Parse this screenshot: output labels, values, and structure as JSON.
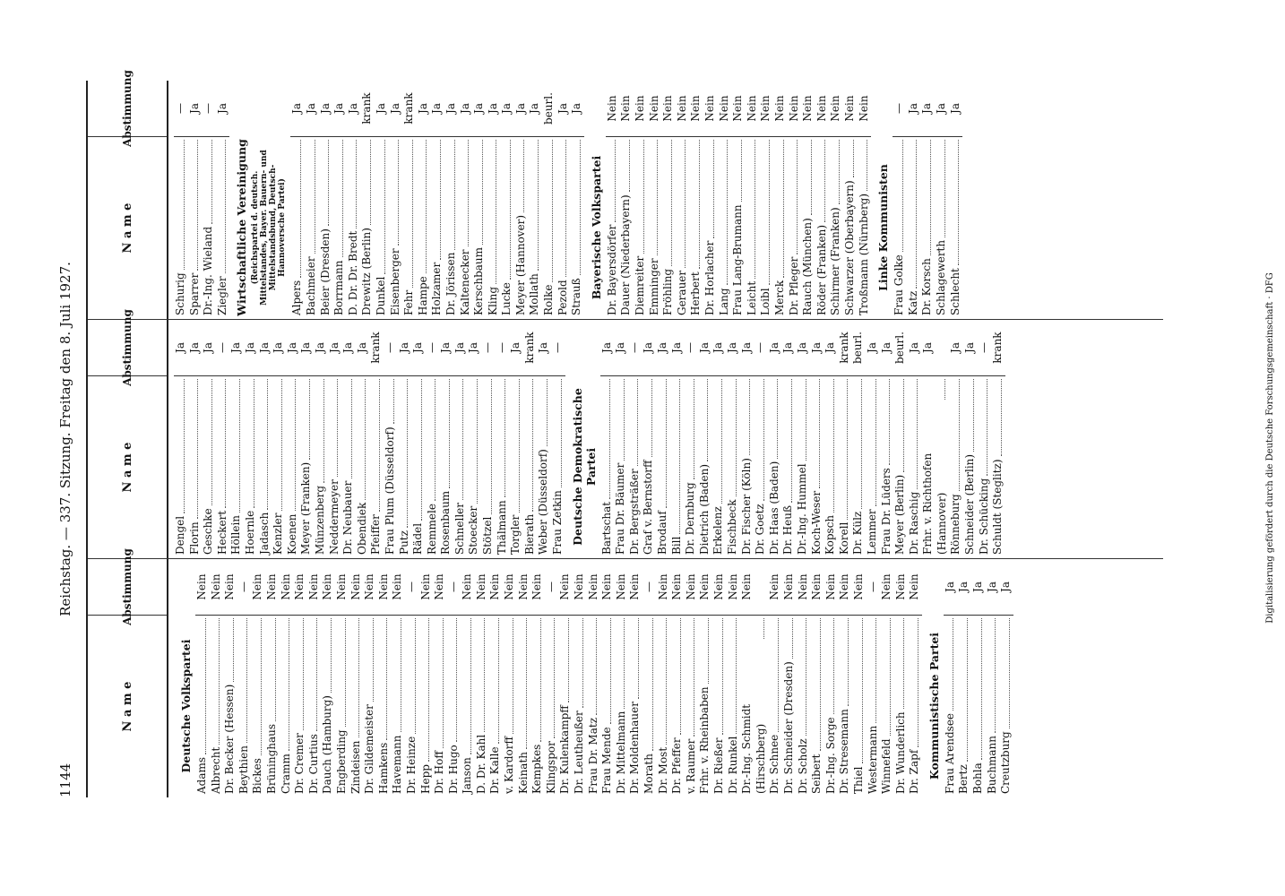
{
  "header": {
    "page_number": "1144",
    "running_title": "Reichstag. — 337. Sitzung. Freitag den 8. Juli 1927."
  },
  "table_header": {
    "name": "N a m e",
    "vote": "Abstimmung"
  },
  "columns": [
    {
      "entries": [
        {
          "party": "Deutsche Volkspartei"
        },
        {
          "name": "Adams",
          "vote": "Nein"
        },
        {
          "name": "Albrecht",
          "vote": "Nein"
        },
        {
          "name": "Dr. Becker (Hessen)",
          "vote": "Nein"
        },
        {
          "name": "Beythien",
          "vote": "—"
        },
        {
          "name": "Bickes",
          "vote": "Nein"
        },
        {
          "name": "Brüninghaus",
          "vote": "Nein"
        },
        {
          "name": "Cramm",
          "vote": "Nein"
        },
        {
          "name": "Dr. Cremer",
          "vote": "Nein"
        },
        {
          "name": "Dr. Curtius",
          "vote": "Nein"
        },
        {
          "name": "Dauch (Hamburg)",
          "vote": "Nein"
        },
        {
          "name": "Engberding",
          "vote": "Nein"
        },
        {
          "name": "Zindeisen",
          "vote": "Nein"
        },
        {
          "name": "Dr. Gildemeister",
          "vote": "Nein"
        },
        {
          "name": "Hamkens",
          "vote": "Nein"
        },
        {
          "name": "Havemann",
          "vote": "Nein"
        },
        {
          "name": "Dr. Heinze",
          "vote": "—"
        },
        {
          "name": "Hepp",
          "vote": "Nein"
        },
        {
          "name": "Dr. Hoff",
          "vote": "Nein"
        },
        {
          "name": "Dr. Hugo",
          "vote": "—"
        },
        {
          "name": "Janson",
          "vote": "Nein"
        },
        {
          "name": "D. Dr. Kahl",
          "vote": "Nein"
        },
        {
          "name": "Dr. Kalle",
          "vote": "Nein"
        },
        {
          "name": "v. Kardorff",
          "vote": "Nein"
        },
        {
          "name": "Keinath",
          "vote": "Nein"
        },
        {
          "name": "Kempkes",
          "vote": "Nein"
        },
        {
          "name": "Klingspor",
          "vote": "—"
        },
        {
          "name": "Dr. Kulenkampff",
          "vote": "Nein"
        },
        {
          "name": "Dr. Leutheußer",
          "vote": "Nein"
        },
        {
          "name": "Frau Dr. Matz",
          "vote": "Nein"
        },
        {
          "name": "Frau Mende",
          "vote": "Nein"
        },
        {
          "name": "Dr. Mittelmann",
          "vote": "Nein"
        },
        {
          "name": "Dr. Moldenhauer",
          "vote": "Nein"
        },
        {
          "name": "Morath",
          "vote": "—"
        },
        {
          "name": "Dr. Most",
          "vote": "Nein"
        },
        {
          "name": "Dr. Pfeffer",
          "vote": "Nein"
        },
        {
          "name": "v. Raumer",
          "vote": "Nein"
        },
        {
          "name": "Frhr. v. Rheinbaben",
          "vote": "Nein"
        },
        {
          "name": "Dr. Rießer",
          "vote": "Nein"
        },
        {
          "name": "Dr. Runkel",
          "vote": "Nein"
        },
        {
          "name": "Dr.-Ing. Schmidt (Hirschberg)",
          "vote": "Nein"
        },
        {
          "name": "Dr. Schnee",
          "vote": "Nein"
        },
        {
          "name": "Dr. Schneider (Dresden)",
          "vote": "Nein"
        },
        {
          "name": "Dr. Scholz",
          "vote": "Nein"
        },
        {
          "name": "Seibert",
          "vote": "Nein"
        },
        {
          "name": "Dr.-Ing. Sorge",
          "vote": "Nein"
        },
        {
          "name": "Dr. Stresemann",
          "vote": "Nein"
        },
        {
          "name": "Thiel",
          "vote": "Nein"
        },
        {
          "name": "Westermann",
          "vote": "—"
        },
        {
          "name": "Winnefeld",
          "vote": "Nein"
        },
        {
          "name": "Dr. Wunderlich",
          "vote": "Nein"
        },
        {
          "name": "Dr. Zapf",
          "vote": "Nein"
        },
        {
          "party": "Kommunistische Partei"
        },
        {
          "name": "Frau Arendsee",
          "vote": "Ja"
        },
        {
          "name": "Bertz",
          "vote": "Ja"
        },
        {
          "name": "Bohla",
          "vote": "Ja"
        },
        {
          "name": "Buchmann",
          "vote": "Ja"
        },
        {
          "name": "Creutzburg",
          "vote": "Ja"
        }
      ]
    },
    {
      "entries": [
        {
          "name": "Dengel",
          "vote": "Ja"
        },
        {
          "name": "Florin",
          "vote": "Ja"
        },
        {
          "name": "Geschke",
          "vote": "Ja"
        },
        {
          "name": "Heckert",
          "vote": "—"
        },
        {
          "name": "Höllein",
          "vote": "Ja"
        },
        {
          "name": "Hoernle",
          "vote": "Ja"
        },
        {
          "name": "Jadasch",
          "vote": "Ja"
        },
        {
          "name": "Kenzler",
          "vote": "Ja"
        },
        {
          "name": "Koenen",
          "vote": "Ja"
        },
        {
          "name": "Meyer (Franken)",
          "vote": "Ja"
        },
        {
          "name": "Münzenberg",
          "vote": "Ja"
        },
        {
          "name": "Neddermeyer",
          "vote": "Ja"
        },
        {
          "name": "Dr. Neubauer",
          "vote": "Ja"
        },
        {
          "name": "Obendiek",
          "vote": "Ja"
        },
        {
          "name": "Pfeiffer",
          "vote": "krank"
        },
        {
          "name": "Frau Plum (Düsseldorf)",
          "vote": "—"
        },
        {
          "name": "Putz",
          "vote": "Ja"
        },
        {
          "name": "Rädel",
          "vote": "Ja"
        },
        {
          "name": "Remmele",
          "vote": "—"
        },
        {
          "name": "Rosenbaum",
          "vote": "Ja"
        },
        {
          "name": "Schneller",
          "vote": "Ja"
        },
        {
          "name": "Stoecker",
          "vote": "Ja"
        },
        {
          "name": "Stötzel",
          "vote": "—"
        },
        {
          "name": "Thälmann",
          "vote": "—"
        },
        {
          "name": "Torgler",
          "vote": "Ja"
        },
        {
          "name": "Bierath",
          "vote": "krank"
        },
        {
          "name": "Weber (Düsseldorf)",
          "vote": "Ja"
        },
        {
          "name": "Frau Zetkin",
          "vote": "—"
        },
        {
          "party": "Deutsche Demokratische Partei"
        },
        {
          "name": "Bartschat",
          "vote": "Ja"
        },
        {
          "name": "Frau Dr. Bäumer",
          "vote": "Ja"
        },
        {
          "name": "Dr. Bergsträßer",
          "vote": "—"
        },
        {
          "name": "Graf v. Bernstorff",
          "vote": "Ja"
        },
        {
          "name": "Brodauf",
          "vote": "Ja"
        },
        {
          "name": "Bill",
          "vote": "Ja"
        },
        {
          "name": "Dr. Dernburg",
          "vote": "—"
        },
        {
          "name": "Dietrich (Baden)",
          "vote": "Ja"
        },
        {
          "name": "Erkelenz",
          "vote": "Ja"
        },
        {
          "name": "Fischbeck",
          "vote": "Ja"
        },
        {
          "name": "Dr. Fischer (Köln)",
          "vote": "Ja"
        },
        {
          "name": "Dr. Goetz",
          "vote": "—"
        },
        {
          "name": "Dr. Haas (Baden)",
          "vote": "Ja"
        },
        {
          "name": "Dr. Heuß",
          "vote": "Ja"
        },
        {
          "name": "Dr.-Ing. Hummel",
          "vote": "Ja"
        },
        {
          "name": "Koch-Weser",
          "vote": "Ja"
        },
        {
          "name": "Kopsch",
          "vote": "Ja"
        },
        {
          "name": "Korell",
          "vote": "krank"
        },
        {
          "name": "Dr. Külz",
          "vote": "beurl."
        },
        {
          "name": "Lemmer",
          "vote": "Ja"
        },
        {
          "name": "Frau Dr. Lüders",
          "vote": "Ja"
        },
        {
          "name": "Meyer (Berlin)",
          "vote": "beurl."
        },
        {
          "name": "Dr. Raschig",
          "vote": "Ja"
        },
        {
          "name": "Frhr. v. Richthofen (Hannover)",
          "vote": "Ja"
        },
        {
          "name": "Rönneburg",
          "vote": "Ja"
        },
        {
          "name": "Schneider (Berlin)",
          "vote": "Ja"
        },
        {
          "name": "Dr. Schücking",
          "vote": "—"
        },
        {
          "name": "Schuldt (Steglitz)",
          "vote": "krank"
        }
      ]
    },
    {
      "entries": [
        {
          "name": "Schurig",
          "vote": "—"
        },
        {
          "name": "Sparrer",
          "vote": "Ja"
        },
        {
          "name": "Dr.-Ing. Wieland",
          "vote": "—"
        },
        {
          "name": "Ziegler",
          "vote": "Ja"
        },
        {
          "party": "Wirtschaftliche Vereinigung",
          "note": "(Reichspartei d. deutsch. Mittelstandes, Bayer. Bauern- und Mittelstandsbund, Deutsch-Hannoversche Partei)"
        },
        {
          "name": "Alpers",
          "vote": "Ja"
        },
        {
          "name": "Bachmeier",
          "vote": "Ja"
        },
        {
          "name": "Beier (Dresden)",
          "vote": "Ja"
        },
        {
          "name": "Borrmann",
          "vote": "Ja"
        },
        {
          "name": "D. Dr. Dr. Bredt",
          "vote": "Ja"
        },
        {
          "name": "Drewitz (Berlin)",
          "vote": "krank"
        },
        {
          "name": "Dunkel",
          "vote": "Ja"
        },
        {
          "name": "Eisenberger",
          "vote": "Ja"
        },
        {
          "name": "Fehr",
          "vote": "krank"
        },
        {
          "name": "Hampe",
          "vote": "Ja"
        },
        {
          "name": "Holzamer",
          "vote": "Ja"
        },
        {
          "name": "Dr. Jörissen",
          "vote": "Ja"
        },
        {
          "name": "Kaltenecker",
          "vote": "Ja"
        },
        {
          "name": "Kerschbaum",
          "vote": "Ja"
        },
        {
          "name": "Kling",
          "vote": "Ja"
        },
        {
          "name": "Lucke",
          "vote": "Ja"
        },
        {
          "name": "Meyer (Hannover)",
          "vote": "Ja"
        },
        {
          "name": "Mollath",
          "vote": "Ja"
        },
        {
          "name": "Rolke",
          "vote": "beurl."
        },
        {
          "name": "Pezold",
          "vote": "Ja"
        },
        {
          "name": "Strauß",
          "vote": "Ja"
        },
        {
          "party": "Bayerische Volkspartei"
        },
        {
          "name": "Dr. Bayersdörfer",
          "vote": "Nein"
        },
        {
          "name": "Dauer (Niederbayern)",
          "vote": "Nein"
        },
        {
          "name": "Diemreiter",
          "vote": "Nein"
        },
        {
          "name": "Emminger",
          "vote": "Nein"
        },
        {
          "name": "Fröhling",
          "vote": "Nein"
        },
        {
          "name": "Gerauer",
          "vote": "Nein"
        },
        {
          "name": "Herbert",
          "vote": "Nein"
        },
        {
          "name": "Dr. Horlacher",
          "vote": "Nein"
        },
        {
          "name": "Lang",
          "vote": "Nein"
        },
        {
          "name": "Frau Lang-Brumann",
          "vote": "Nein"
        },
        {
          "name": "Leicht",
          "vote": "Nein"
        },
        {
          "name": "Loibl",
          "vote": "Nein"
        },
        {
          "name": "Merck",
          "vote": "Nein"
        },
        {
          "name": "Dr. Pfleger",
          "vote": "Nein"
        },
        {
          "name": "Rauch (München)",
          "vote": "Nein"
        },
        {
          "name": "Röder (Franken)",
          "vote": "Nein"
        },
        {
          "name": "Schirmer (Franken)",
          "vote": "Nein"
        },
        {
          "name": "Schwarzer (Oberbayern)",
          "vote": "Nein"
        },
        {
          "name": "Troßmann (Nürnberg)",
          "vote": "Nein"
        },
        {
          "party": "Linke Kommunisten"
        },
        {
          "name": "Frau Golke",
          "vote": "—"
        },
        {
          "name": "Katz",
          "vote": "Ja"
        },
        {
          "name": "Dr. Korsch",
          "vote": "Ja"
        },
        {
          "name": "Schlagewerth",
          "vote": "Ja"
        },
        {
          "name": "Schlecht",
          "vote": "Ja"
        }
      ]
    }
  ],
  "footer_note": "Digitalisierung gefördert durch die Deutsche Forschungsgemeinschaft · DFG"
}
